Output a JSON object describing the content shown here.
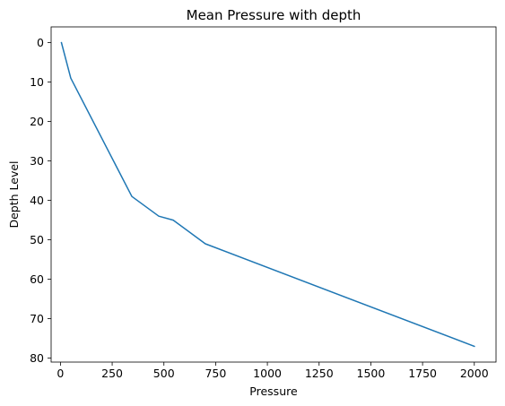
{
  "chart_data": {
    "type": "line",
    "title": "Mean Pressure with depth",
    "xlabel": "Pressure",
    "ylabel": "Depth Level",
    "xlim": [
      -45,
      2105
    ],
    "ylim": [
      81,
      -4
    ],
    "y_inverted": true,
    "grid": false,
    "legend": "none",
    "x_ticks": [
      0,
      250,
      500,
      750,
      1000,
      1250,
      1500,
      1750,
      2000
    ],
    "y_ticks": [
      0,
      10,
      20,
      30,
      40,
      50,
      60,
      70,
      80
    ],
    "series": [
      {
        "color": "#1f77b4",
        "x": [
          5,
          50,
          345,
          475,
          545,
          700,
          2000
        ],
        "y": [
          0,
          9,
          39,
          44,
          45,
          51,
          77
        ]
      }
    ]
  }
}
